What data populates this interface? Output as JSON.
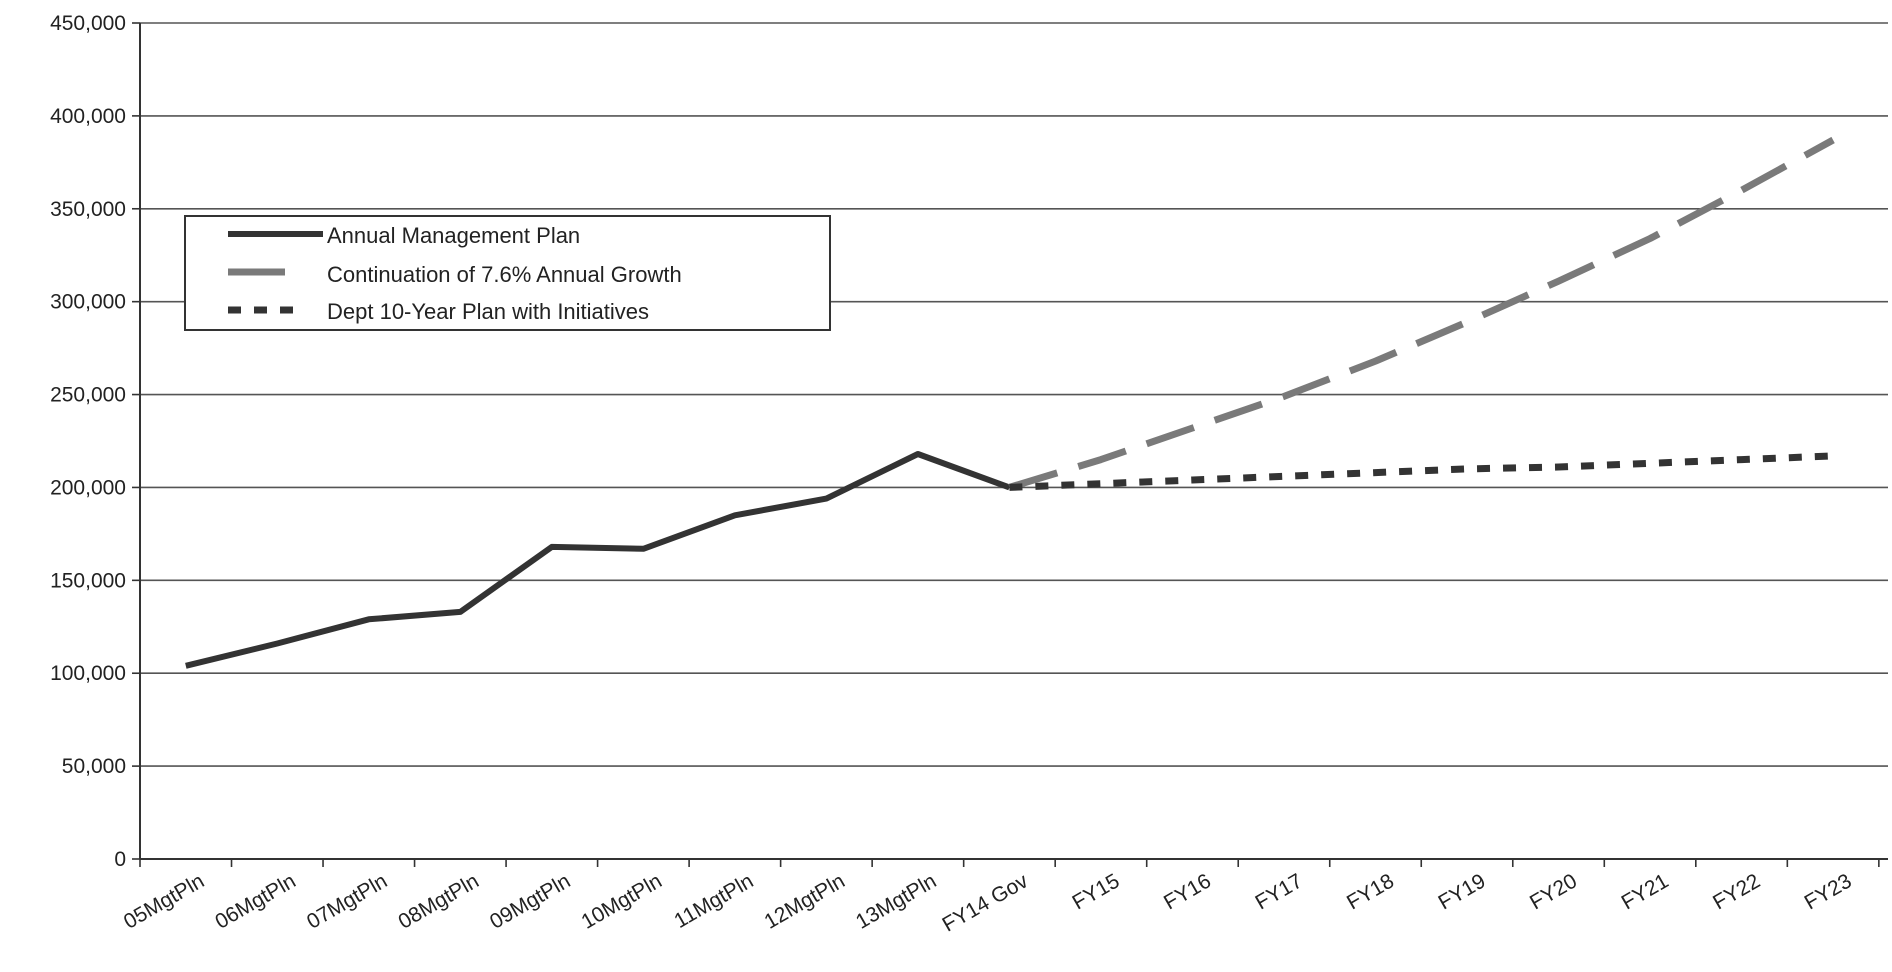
{
  "chart_data": {
    "type": "line",
    "title": "",
    "xlabel": "",
    "ylabel": "",
    "ylim": [
      0,
      450000
    ],
    "yticks": [
      0,
      50000,
      100000,
      150000,
      200000,
      250000,
      300000,
      350000,
      400000,
      450000
    ],
    "ytick_labels": [
      "0",
      "50,000",
      "100,000",
      "150,000",
      "200,000",
      "250,000",
      "300,000",
      "350,000",
      "400,000",
      "450,000"
    ],
    "categories": [
      "05MgtPln",
      "06MgtPln",
      "07MgtPln",
      "08MgtPln",
      "09MgtPln",
      "10MgtPln",
      "11MgtPln",
      "12MgtPln",
      "13MgtPln",
      "FY14 Gov",
      "FY15",
      "FY16",
      "FY17",
      "FY18",
      "FY19",
      "FY20",
      "FY21",
      "FY22",
      "FY23"
    ],
    "grid": true,
    "legend_position": "top-left",
    "series": [
      {
        "name": "Annual Management Plan",
        "style": "solid",
        "color": "#333333",
        "values": [
          104000,
          116000,
          129000,
          133000,
          168000,
          167000,
          185000,
          194000,
          218000,
          200000,
          null,
          null,
          null,
          null,
          null,
          null,
          null,
          null,
          null
        ]
      },
      {
        "name": "Continuation of 7.6% Annual Growth",
        "style": "dash",
        "color": "#7a7a7a",
        "values": [
          null,
          null,
          null,
          null,
          null,
          null,
          null,
          null,
          null,
          200000,
          215000,
          232000,
          249000,
          268000,
          289000,
          311000,
          334000,
          360000,
          387000
        ]
      },
      {
        "name": "Dept 10-Year Plan with Initiatives",
        "style": "dot",
        "color": "#333333",
        "values": [
          null,
          null,
          null,
          null,
          null,
          null,
          null,
          null,
          null,
          200000,
          202000,
          204000,
          206000,
          208000,
          210000,
          211000,
          213000,
          215000,
          217000
        ]
      }
    ]
  }
}
